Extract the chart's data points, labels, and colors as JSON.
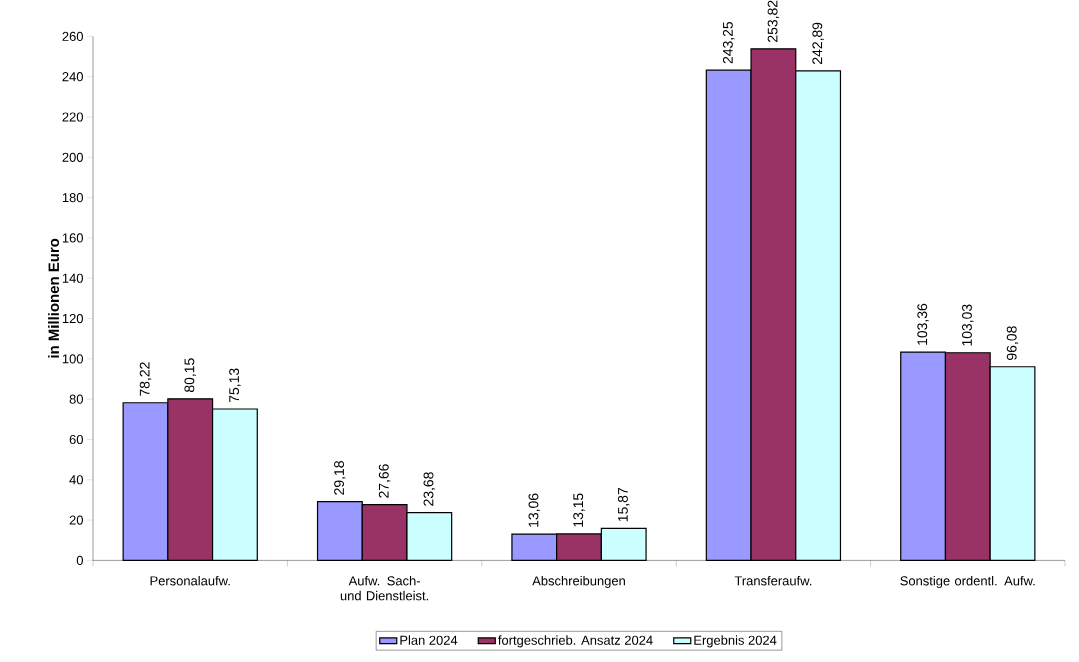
{
  "chart_data": {
    "type": "bar",
    "ylabel": "in Millionen Euro",
    "categories": [
      "Personalaufw.",
      "Aufw. Sach- und Dienstleist.",
      "Abschreibungen",
      "Transferaufw.",
      "Sonstige ordentl. Aufw."
    ],
    "series": [
      {
        "name": "Plan 2024",
        "color": "#9999ff",
        "values": [
          78.22,
          29.18,
          13.06,
          243.25,
          103.36
        ],
        "value_labels": [
          "78,22",
          "29,18",
          "13,06",
          "243,25",
          "103,36"
        ]
      },
      {
        "name": "fortgeschrieb. Ansatz 2024",
        "color": "#993366",
        "values": [
          80.15,
          27.66,
          13.15,
          253.82,
          103.03
        ],
        "value_labels": [
          "80,15",
          "27,66",
          "13,15",
          "253,82",
          "103,03"
        ]
      },
      {
        "name": "Ergebnis 2024",
        "color": "#ccffff",
        "values": [
          75.13,
          23.68,
          15.87,
          242.89,
          96.08
        ],
        "value_labels": [
          "75,13",
          "23,68",
          "15,87",
          "242,89",
          "96,08"
        ]
      }
    ],
    "ylim": [
      0,
      260
    ],
    "yticks": [
      0,
      20,
      40,
      60,
      80,
      100,
      120,
      140,
      160,
      180,
      200,
      220,
      240,
      260
    ],
    "grid": false,
    "legend": "bottom"
  }
}
